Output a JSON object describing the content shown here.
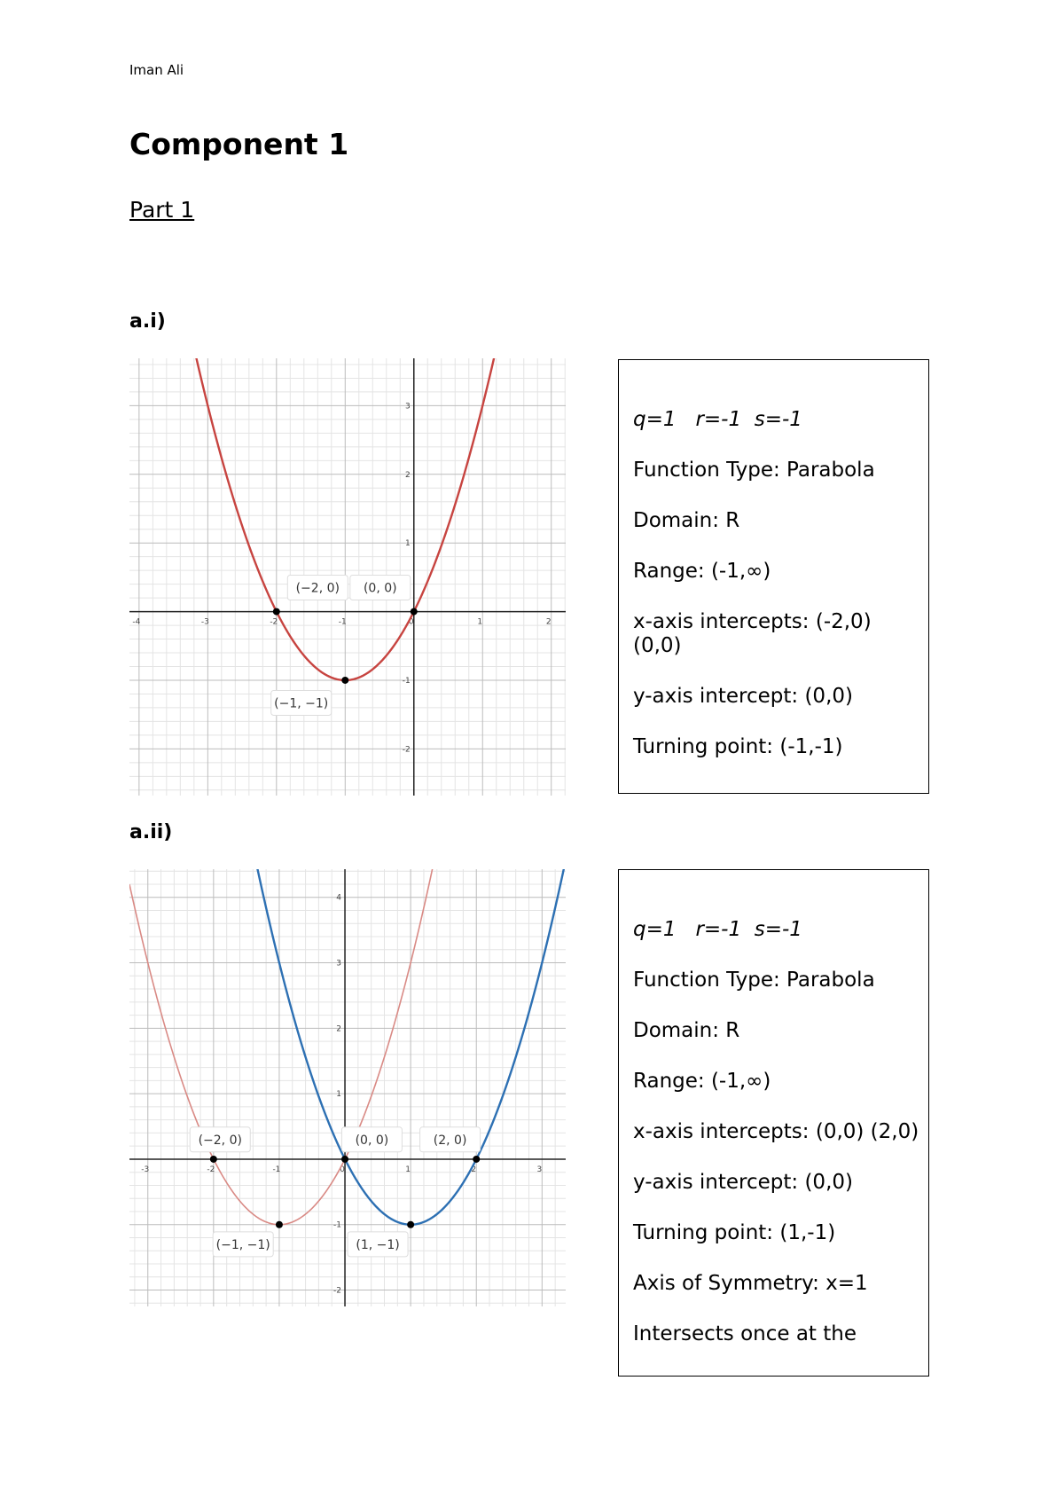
{
  "header": {
    "author": "Iman Ali"
  },
  "title": "Component 1",
  "subtitle": "Part 1",
  "sections": [
    {
      "label": "a.i)",
      "graph": {
        "xlim": [
          -4.14,
          2.21
        ],
        "ylim": [
          -2.68,
          3.69
        ],
        "xticks": [
          -4,
          -3,
          -2,
          -1,
          0,
          1,
          2
        ],
        "yticks": [
          -2,
          -1,
          1,
          2,
          3
        ],
        "curves": [
          {
            "color": "#c74440",
            "a": 1,
            "h": -1,
            "k": -1
          }
        ],
        "points": [
          {
            "x": -2,
            "y": 0,
            "label": "(−2, 0)"
          },
          {
            "x": 0,
            "y": 0,
            "label": "(0, 0)"
          },
          {
            "x": -1,
            "y": -1,
            "label": "(−1, −1)"
          }
        ]
      },
      "info": {
        "params": "q=1   r=-1  s=-1",
        "lines": [
          "Function Type: Parabola",
          "Domain: R",
          "Range: (-1,∞)",
          "x-axis intercepts: (-2,0) (0,0)",
          "y-axis intercept: (0,0)",
          "Turning point: (-1,-1)"
        ]
      }
    },
    {
      "label": "a.ii)",
      "graph": {
        "xlim": [
          -3.28,
          3.36
        ],
        "ylim": [
          -2.25,
          4.43
        ],
        "xticks": [
          -3,
          -2,
          -1,
          0,
          1,
          2,
          3
        ],
        "yticks": [
          -2,
          -1,
          1,
          2,
          3,
          4
        ],
        "curves": [
          {
            "color": "#d98a85",
            "a": 1,
            "h": -1,
            "k": -1
          },
          {
            "color": "#2d70b3",
            "a": 1,
            "h": 1,
            "k": -1
          }
        ],
        "points": [
          {
            "x": -2,
            "y": 0,
            "label": "(−2, 0)"
          },
          {
            "x": 0,
            "y": 0,
            "label": "(0, 0)"
          },
          {
            "x": 2,
            "y": 0,
            "label": "(2, 0)"
          },
          {
            "x": -1,
            "y": -1,
            "label": "(−1, −1)"
          },
          {
            "x": 1,
            "y": -1,
            "label": "(1, −1)"
          }
        ]
      },
      "info": {
        "params": "q=1   r=-1  s=-1",
        "lines": [
          "Function Type: Parabola",
          "Domain: R",
          "Range: (-1,∞)",
          "x-axis intercepts: (0,0) (2,0)",
          "y-axis intercept: (0,0)",
          "Turning point: (1,-1)",
          "Axis of Symmetry: x=1",
          "Intersects  once at the"
        ]
      }
    }
  ]
}
